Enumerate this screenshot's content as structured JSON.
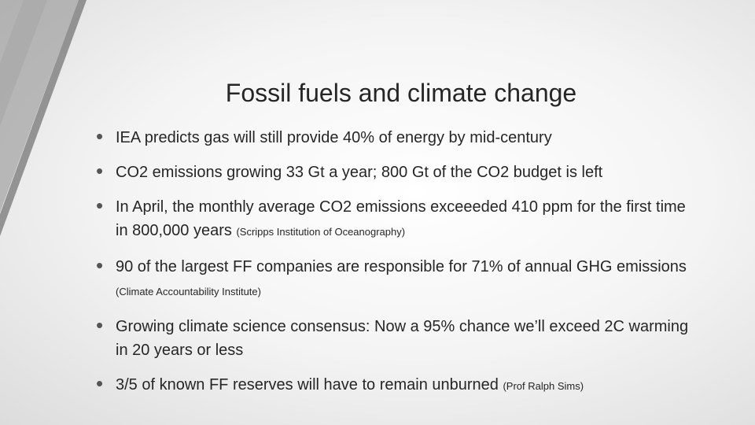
{
  "slide": {
    "title": "Fossil fuels and climate change",
    "bullets": [
      {
        "text": "IEA predicts gas will still provide 40% of energy by mid-century"
      },
      {
        "text": "CO2 emissions growing 33 Gt a year; 800 Gt of the CO2 budget is left"
      },
      {
        "text": "In April, the monthly average CO2 emissions exceeeded 410 ppm for the first time in 800,000 years",
        "source": "(Scripps Institution of Oceanography)"
      },
      {
        "text": "90 of the largest FF companies are responsible for 71% of annual GHG emissions",
        "source": "(Climate Accountability Institute)"
      },
      {
        "text": "Growing climate science consensus: Now a 95% chance we’ll exceed 2C warming in 20 years or less"
      },
      {
        "text": "3/5 of known FF reserves will have to remain unburned",
        "source": "(Prof Ralph Sims)"
      }
    ]
  }
}
